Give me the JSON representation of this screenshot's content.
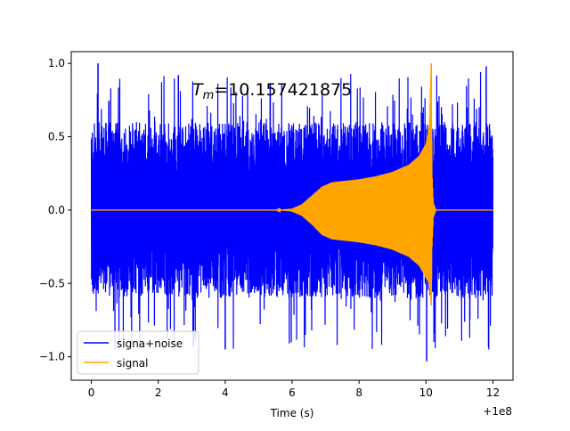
{
  "chart_data": {
    "type": "line",
    "annotation": {
      "symbol": "T",
      "subscript": "m",
      "value_text": "=10.157421875",
      "value": 10.157421875
    },
    "xlabel": "Time (s)",
    "x_offset_label": "+1e8",
    "xlim": [
      -0.6,
      12.6
    ],
    "ylim": [
      -1.16,
      1.08
    ],
    "x_ticks": [
      {
        "value": 0,
        "label": "0"
      },
      {
        "value": 2,
        "label": "2"
      },
      {
        "value": 4,
        "label": "4"
      },
      {
        "value": 6,
        "label": "6"
      },
      {
        "value": 8,
        "label": "8"
      },
      {
        "value": 10,
        "label": "10"
      },
      {
        "value": 12,
        "label": "12"
      }
    ],
    "y_ticks": [
      {
        "value": 1.0,
        "label": "1.0"
      },
      {
        "value": 0.5,
        "label": "0.5"
      },
      {
        "value": 0.0,
        "label": "0.0"
      },
      {
        "value": -0.5,
        "label": "−0.5"
      },
      {
        "value": -1.0,
        "label": "−1.0"
      }
    ],
    "grid": false,
    "legend_position": "lower-left",
    "series": [
      {
        "name": "signa+noise",
        "color": "#0000ff",
        "description_points": {
          "x": [
            0,
            12
          ],
          "typical_upper": [
            0.55,
            0.55
          ],
          "typical_lower": [
            -0.55,
            -0.55
          ],
          "max": 1.0,
          "min": -1.03
        }
      },
      {
        "name": "signal",
        "color": "#ffa500",
        "envelope": {
          "x": [
            0,
            5.5,
            6.0,
            6.3,
            6.6,
            6.9,
            7.2,
            7.6,
            8.0,
            8.5,
            9.0,
            9.5,
            9.8,
            10.0,
            10.1,
            10.157,
            10.18,
            10.22,
            10.3,
            12
          ],
          "upper": [
            0,
            0,
            0.01,
            0.04,
            0.1,
            0.16,
            0.19,
            0.2,
            0.21,
            0.23,
            0.26,
            0.31,
            0.37,
            0.45,
            0.58,
            1.0,
            0.25,
            0.05,
            0.0,
            0
          ],
          "lower": [
            0,
            0,
            -0.01,
            -0.04,
            -0.1,
            -0.17,
            -0.2,
            -0.21,
            -0.22,
            -0.24,
            -0.27,
            -0.32,
            -0.38,
            -0.46,
            -0.5,
            -0.65,
            -0.25,
            -0.05,
            0.0,
            0
          ]
        }
      }
    ]
  }
}
